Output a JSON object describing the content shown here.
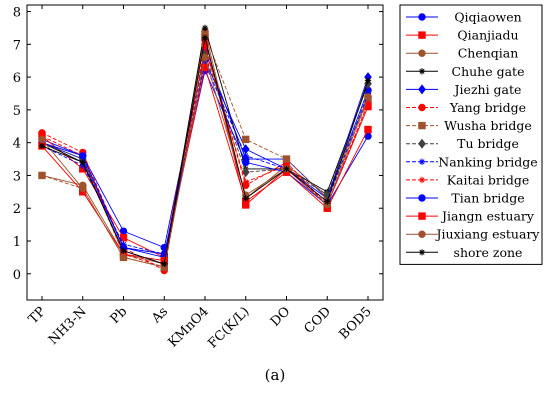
{
  "chart_data": {
    "type": "line",
    "title": "",
    "xlabel": "",
    "ylabel": "",
    "ylim": [
      -0.8,
      8.2
    ],
    "y_ticks": [
      0,
      1,
      2,
      3,
      4,
      5,
      6,
      7,
      8
    ],
    "categories": [
      "TP",
      "NH3-N",
      "Pb",
      "As",
      "KMnO4",
      "FC(K/L)",
      "DO",
      "COD",
      "BOD5"
    ],
    "grid": false,
    "legend": "right, outside plot area",
    "series": [
      {
        "name": "Qiqiaowen",
        "color": "#0000ff",
        "dash": "solid",
        "marker": "circle",
        "values": [
          4.1,
          3.6,
          1.3,
          0.8,
          6.8,
          3.5,
          3.5,
          2.3,
          5.6
        ]
      },
      {
        "name": "Qianjiadu",
        "color": "#ff0000",
        "dash": "solid",
        "marker": "square",
        "values": [
          4.2,
          3.2,
          1.1,
          0.5,
          7.2,
          2.1,
          3.2,
          2.1,
          5.1
        ]
      },
      {
        "name": "Chenqian",
        "color": "#a0522d",
        "dash": "solid",
        "marker": "circle",
        "values": [
          3.0,
          2.7,
          0.6,
          0.3,
          7.4,
          2.3,
          3.3,
          2.4,
          5.4
        ]
      },
      {
        "name": "Chuhe gate",
        "color": "#000000",
        "dash": "solid",
        "marker": "star",
        "values": [
          4.0,
          3.4,
          0.7,
          0.3,
          7.5,
          3.2,
          3.2,
          2.5,
          5.8
        ]
      },
      {
        "name": "Jiezhi gate",
        "color": "#0000ff",
        "dash": "solid",
        "marker": "diamond",
        "values": [
          4.0,
          3.5,
          0.8,
          0.5,
          6.5,
          3.8,
          3.2,
          2.3,
          6.0
        ]
      },
      {
        "name": "Yang bridge",
        "color": "#ff0000",
        "dash": "dashed",
        "marker": "circle",
        "values": [
          4.3,
          3.7,
          0.8,
          0.1,
          7.0,
          2.7,
          3.4,
          2.1,
          5.2
        ]
      },
      {
        "name": "Wusha bridge",
        "color": "#a0522d",
        "dash": "dashed",
        "marker": "square",
        "values": [
          3.0,
          2.6,
          0.5,
          0.2,
          7.3,
          4.1,
          3.5,
          2.3,
          5.3
        ]
      },
      {
        "name": "Tu bridge",
        "color": "#404040",
        "dash": "dashed",
        "marker": "diamond",
        "values": [
          4.0,
          3.5,
          0.6,
          0.4,
          6.7,
          3.1,
          3.2,
          2.4,
          5.8
        ]
      },
      {
        "name": "Nanking bridge",
        "color": "#0000ff",
        "dash": "dashed",
        "marker": "star",
        "values": [
          3.9,
          3.3,
          0.9,
          0.6,
          6.4,
          3.6,
          3.2,
          2.2,
          5.5
        ]
      },
      {
        "name": "Kaitai bridge",
        "color": "#ff0000",
        "dash": "dashed",
        "marker": "star",
        "values": [
          4.2,
          3.6,
          0.6,
          0.2,
          6.9,
          2.8,
          3.3,
          2.1,
          5.2
        ]
      },
      {
        "name": "Tian bridge",
        "color": "#0000ff",
        "dash": "solid",
        "marker": "circle",
        "values": [
          4.0,
          3.6,
          0.8,
          0.6,
          6.2,
          3.4,
          3.1,
          2.1,
          4.2
        ]
      },
      {
        "name": "Jiangn estuary",
        "color": "#ff0000",
        "dash": "solid",
        "marker": "square",
        "values": [
          3.9,
          2.5,
          0.6,
          0.4,
          6.3,
          2.2,
          3.1,
          2.0,
          4.4
        ]
      },
      {
        "name": "Jiuxiang estuary",
        "color": "#a0522d",
        "dash": "solid",
        "marker": "circle",
        "values": [
          4.1,
          2.6,
          0.5,
          0.2,
          6.6,
          2.4,
          3.2,
          2.1,
          5.4
        ]
      },
      {
        "name": "shore zone",
        "color": "#000000",
        "dash": "solid",
        "marker": "star",
        "values": [
          3.9,
          3.4,
          0.7,
          0.3,
          7.2,
          2.3,
          3.2,
          2.2,
          5.9
        ]
      }
    ]
  },
  "caption": "(a)"
}
